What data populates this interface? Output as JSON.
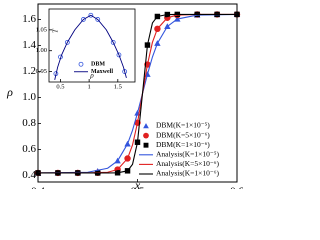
{
  "chart_data": [
    {
      "type": "line",
      "xlabel": "x",
      "ylabel": "ρ",
      "xlim": [
        0.4,
        0.6
      ],
      "xticks": [
        0.4,
        0.5,
        0.6
      ],
      "ylim": [
        0.35,
        1.72
      ],
      "yticks": [
        0.4,
        0.6,
        0.8,
        {
          "value": 1,
          "label": "1.0"
        },
        1.2,
        1.4,
        1.6
      ],
      "legend": "lower right",
      "series": [
        {
          "name": "DBM(K=1×10⁻⁵)",
          "color": "#3355dd",
          "marker": "triangle",
          "x": [
            0.4,
            0.42,
            0.44,
            0.46,
            0.48,
            0.49,
            0.5,
            0.51,
            0.52,
            0.53,
            0.54,
            0.56,
            0.58,
            0.6
          ],
          "values": [
            0.42,
            0.42,
            0.422,
            0.433,
            0.513,
            0.643,
            0.881,
            1.179,
            1.417,
            1.547,
            1.604,
            1.635,
            1.639,
            1.64
          ]
        },
        {
          "name": "DBM(K=5×10⁻⁶)",
          "color": "#e02020",
          "marker": "circle",
          "x": [
            0.4,
            0.42,
            0.44,
            0.46,
            0.48,
            0.49,
            0.5,
            0.51,
            0.52,
            0.53,
            0.54,
            0.56,
            0.58,
            0.6
          ],
          "values": [
            0.42,
            0.42,
            0.42,
            0.421,
            0.446,
            0.531,
            0.806,
            1.254,
            1.529,
            1.614,
            1.635,
            1.64,
            1.64,
            1.64
          ]
        },
        {
          "name": "DBM(K=1×10⁻⁶)",
          "color": "#000000",
          "marker": "square",
          "x": [
            0.4,
            0.42,
            0.44,
            0.46,
            0.48,
            0.49,
            0.5,
            0.51,
            0.52,
            0.53,
            0.54,
            0.56,
            0.58,
            0.6
          ],
          "values": [
            0.42,
            0.42,
            0.42,
            0.42,
            0.421,
            0.436,
            0.656,
            1.404,
            1.624,
            1.639,
            1.64,
            1.64,
            1.64,
            1.64
          ]
        },
        {
          "name": "Analysis(K=1×10⁻⁵)",
          "color": "#3355dd",
          "x": [
            0.4,
            0.45,
            0.47,
            0.48,
            0.49,
            0.495,
            0.5,
            0.505,
            0.51,
            0.515,
            0.52,
            0.53,
            0.54,
            0.56,
            0.6
          ],
          "values": [
            0.42,
            0.425,
            0.456,
            0.513,
            0.643,
            0.748,
            0.881,
            1.03,
            1.179,
            1.312,
            1.417,
            1.547,
            1.604,
            1.635,
            1.64
          ]
        },
        {
          "name": "Analysis(K=5×10⁻⁶)",
          "color": "#e02020",
          "x": [
            0.4,
            0.45,
            0.47,
            0.48,
            0.49,
            0.495,
            0.5,
            0.505,
            0.51,
            0.515,
            0.52,
            0.53,
            0.54,
            0.56,
            0.6
          ],
          "values": [
            0.42,
            0.42,
            0.425,
            0.446,
            0.531,
            0.635,
            0.806,
            1.03,
            1.254,
            1.425,
            1.529,
            1.614,
            1.635,
            1.64,
            1.64
          ]
        },
        {
          "name": "Analysis(K=1×10⁻⁶)",
          "color": "#000000",
          "x": [
            0.4,
            0.45,
            0.47,
            0.48,
            0.49,
            0.495,
            0.5,
            0.505,
            0.51,
            0.515,
            0.52,
            0.53,
            0.54,
            0.56,
            0.6
          ],
          "values": [
            0.42,
            0.42,
            0.42,
            0.421,
            0.436,
            0.486,
            0.656,
            1.03,
            1.404,
            1.574,
            1.624,
            1.639,
            1.64,
            1.64,
            1.64
          ]
        }
      ]
    },
    {
      "type": "line",
      "xlabel": "ρ",
      "ylabel": "T",
      "xlim": [
        0.3,
        1.8
      ],
      "xticks": [
        0.5,
        1,
        1.5
      ],
      "ylim": [
        0.925,
        1.1
      ],
      "yticks": [
        0.95,
        {
          "value": 1,
          "label": "1.00"
        },
        1.05
      ],
      "legend": "lower center",
      "series": [
        {
          "name": "DBM",
          "color": "#3355dd",
          "marker": "open-circle",
          "x": [
            0.42,
            0.5,
            0.62,
            0.9,
            1.03,
            1.15,
            1.42,
            1.52,
            1.62
          ],
          "values": [
            0.945,
            0.985,
            1.02,
            1.075,
            1.085,
            1.075,
            1.02,
            0.99,
            0.95
          ]
        },
        {
          "name": "Maxwell",
          "color": "#000080",
          "x": [
            0.4,
            0.45,
            0.52,
            0.62,
            0.75,
            0.9,
            1.03,
            1.15,
            1.3,
            1.42,
            1.52,
            1.6,
            1.65
          ],
          "values": [
            0.93,
            0.96,
            0.99,
            1.02,
            1.05,
            1.075,
            1.085,
            1.075,
            1.05,
            1.02,
            0.99,
            0.96,
            0.935
          ]
        }
      ]
    }
  ]
}
